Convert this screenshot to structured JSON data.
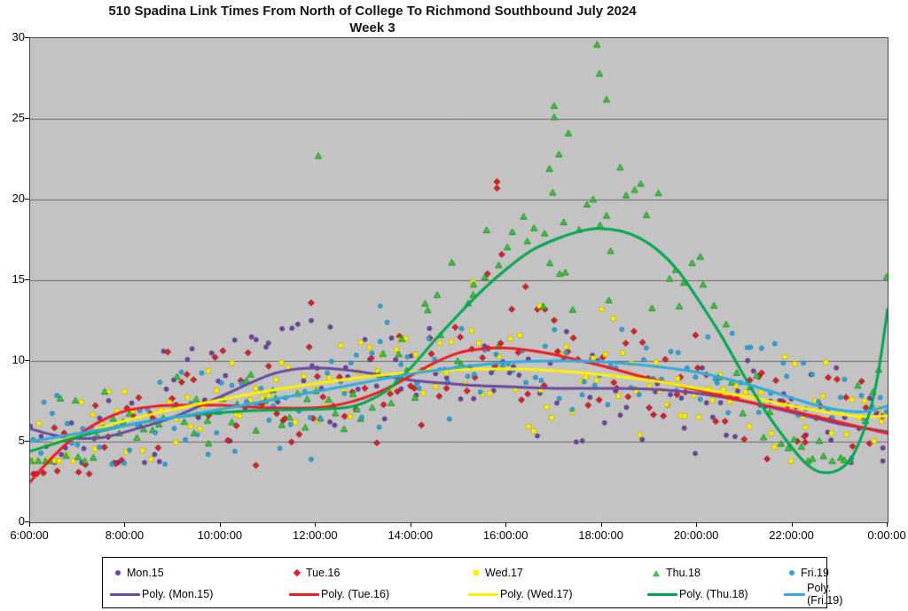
{
  "chart_data": {
    "type": "scatter",
    "title": "510 Spadina Link Times From North of College To Richmond Southbound July 2024",
    "subtitle": "Week 3",
    "xlabel": "",
    "ylabel": "",
    "grid": "horizontal",
    "legend_position": "bottom",
    "plot_bg_color": "#c3c3c3",
    "grid_color": "#6b6b6b",
    "x_axis": {
      "min": 6,
      "max": 24,
      "tick_hours": [
        6,
        8,
        10,
        12,
        14,
        16,
        18,
        20,
        22,
        24
      ],
      "labels": [
        "6:00:00",
        "8:00:00",
        "10:00:00",
        "12:00:00",
        "14:00:00",
        "16:00:00",
        "18:00:00",
        "20:00:00",
        "22:00:00",
        "0:00:00"
      ]
    },
    "y_axis": {
      "min": 0,
      "max": 30,
      "tick_values": [
        30,
        25,
        20,
        15,
        10,
        5,
        0
      ],
      "labels": [
        "30",
        "25",
        "20",
        "15",
        "10",
        "5",
        "0"
      ]
    },
    "series": [
      {
        "name": "Mon.15",
        "poly_label": "Poly. (Mon.15)",
        "marker": "circle",
        "marker_color": "#6f42a3",
        "marker_stroke": "#53307e",
        "line_color": "#6a4a9e",
        "poly_curve": [
          [
            6,
            5.8
          ],
          [
            6.5,
            5.4
          ],
          [
            7,
            5.2
          ],
          [
            7.5,
            5.25
          ],
          [
            8,
            5.6
          ],
          [
            9,
            6.5
          ],
          [
            10,
            7.8
          ],
          [
            11,
            9.1
          ],
          [
            11.6,
            9.5
          ],
          [
            12.2,
            9.55
          ],
          [
            13,
            9.3
          ],
          [
            14,
            8.8
          ],
          [
            15,
            8.55
          ],
          [
            16,
            8.4
          ],
          [
            17,
            8.3
          ],
          [
            18,
            8.3
          ],
          [
            19,
            8.25
          ],
          [
            20,
            8.0
          ],
          [
            21,
            7.5
          ],
          [
            22,
            6.8
          ],
          [
            23,
            6.1
          ],
          [
            23.5,
            5.85
          ],
          [
            24,
            5.6
          ]
        ],
        "outliers": [
          [
            8.8,
            10.6
          ],
          [
            11.9,
            12.5
          ],
          [
            12.3,
            12.1
          ],
          [
            23.9,
            3.8
          ]
        ],
        "scatter": {
          "count": 130,
          "seed": 7,
          "spread": 2.5,
          "min": 3.7,
          "max": 12.6
        }
      },
      {
        "name": "Tue.16",
        "poly_label": "Poly. (Tue.16)",
        "marker": "diamond",
        "marker_color": "#e01f25",
        "marker_stroke": "#8f1014",
        "line_color": "#ed1c24",
        "poly_curve": [
          [
            6,
            2.5
          ],
          [
            6.3,
            3.5
          ],
          [
            6.7,
            4.7
          ],
          [
            7,
            5.4
          ],
          [
            7.5,
            6.3
          ],
          [
            8,
            6.9
          ],
          [
            8.5,
            7.15
          ],
          [
            9,
            7.25
          ],
          [
            10,
            7.25
          ],
          [
            11,
            7.1
          ],
          [
            12,
            7.1
          ],
          [
            12.5,
            7.3
          ],
          [
            13,
            7.7
          ],
          [
            13.5,
            8.3
          ],
          [
            14,
            9.1
          ],
          [
            14.5,
            9.9
          ],
          [
            15,
            10.5
          ],
          [
            15.5,
            10.75
          ],
          [
            16,
            10.8
          ],
          [
            16.5,
            10.65
          ],
          [
            17,
            10.4
          ],
          [
            17.5,
            10.05
          ],
          [
            18,
            9.7
          ],
          [
            18.5,
            9.3
          ],
          [
            19,
            8.9
          ],
          [
            19.5,
            8.55
          ],
          [
            20,
            8.2
          ],
          [
            21,
            7.5
          ],
          [
            22,
            6.9
          ],
          [
            23,
            6.2
          ],
          [
            23.5,
            5.85
          ],
          [
            24,
            5.5
          ]
        ],
        "outliers": [
          [
            11.9,
            13.6
          ],
          [
            15.6,
            15.4
          ],
          [
            15.8,
            21.1
          ],
          [
            15.8,
            20.7
          ],
          [
            15.9,
            16.6
          ],
          [
            16.4,
            14.6
          ]
        ],
        "scatter": {
          "count": 135,
          "seed": 13,
          "spread": 2.6,
          "min": 3.0,
          "max": 13.2
        }
      },
      {
        "name": "Wed.17",
        "poly_label": "Poly. (Wed.17)",
        "marker": "square",
        "marker_color": "#fff100",
        "marker_stroke": "#c9b900",
        "line_color": "#fff100",
        "poly_curve": [
          [
            6,
            4.4
          ],
          [
            7,
            5.4
          ],
          [
            8,
            6.3
          ],
          [
            9,
            7.0
          ],
          [
            10,
            7.6
          ],
          [
            11,
            8.15
          ],
          [
            12,
            8.6
          ],
          [
            13,
            9.0
          ],
          [
            14,
            9.3
          ],
          [
            15,
            9.45
          ],
          [
            16,
            9.5
          ],
          [
            17,
            9.4
          ],
          [
            18,
            9.15
          ],
          [
            19,
            8.8
          ],
          [
            20,
            8.3
          ],
          [
            21,
            7.8
          ],
          [
            22,
            7.2
          ],
          [
            23,
            6.7
          ],
          [
            23.5,
            6.55
          ],
          [
            24,
            6.6
          ]
        ],
        "outliers": [
          [
            15.3,
            14.9
          ],
          [
            16.7,
            13.4
          ],
          [
            18.0,
            13.2
          ]
        ],
        "scatter": {
          "count": 135,
          "seed": 21,
          "spread": 2.6,
          "min": 3.8,
          "max": 13.8
        }
      },
      {
        "name": "Thu.18",
        "poly_label": "Poly. (Thu.18)",
        "marker": "triangle",
        "marker_color": "#3cc43c",
        "marker_stroke": "#1e8c1e",
        "line_color": "#00a550",
        "poly_curve": [
          [
            6,
            4.4
          ],
          [
            7,
            5.3
          ],
          [
            8,
            6.0
          ],
          [
            9,
            6.5
          ],
          [
            10,
            6.8
          ],
          [
            11,
            6.95
          ],
          [
            12,
            7.0
          ],
          [
            12.6,
            7.1
          ],
          [
            13,
            7.4
          ],
          [
            13.5,
            8.2
          ],
          [
            14,
            9.6
          ],
          [
            14.5,
            11.3
          ],
          [
            15,
            12.9
          ],
          [
            15.5,
            14.4
          ],
          [
            16,
            15.7
          ],
          [
            16.5,
            16.8
          ],
          [
            17,
            17.5
          ],
          [
            17.5,
            18.0
          ],
          [
            17.9,
            18.2
          ],
          [
            18.4,
            18.05
          ],
          [
            18.8,
            17.6
          ],
          [
            19.2,
            16.8
          ],
          [
            19.6,
            15.6
          ],
          [
            20,
            13.9
          ],
          [
            20.5,
            11.6
          ],
          [
            21,
            9.0
          ],
          [
            21.5,
            6.6
          ],
          [
            22,
            4.6
          ],
          [
            22.3,
            3.6
          ],
          [
            22.6,
            3.1
          ],
          [
            23,
            3.3
          ],
          [
            23.3,
            4.3
          ],
          [
            23.6,
            6.6
          ],
          [
            23.8,
            9.2
          ],
          [
            24,
            13.2
          ]
        ],
        "outliers": [
          [
            12.05,
            22.7
          ],
          [
            15.3,
            14.1
          ],
          [
            16.8,
            17.9
          ],
          [
            16.9,
            21.9
          ],
          [
            17.0,
            25.1
          ],
          [
            17.0,
            25.8
          ],
          [
            17.1,
            22.8
          ],
          [
            17.2,
            18.6
          ],
          [
            17.3,
            24.1
          ],
          [
            17.9,
            29.6
          ],
          [
            17.95,
            27.8
          ],
          [
            18.1,
            26.2
          ],
          [
            18.1,
            19.0
          ]
        ],
        "scatter": {
          "count": 130,
          "seed": 29,
          "spread": 2.4,
          "min": 3.8,
          "max": 22.5,
          "burst": {
            "from": 14.3,
            "to": 20.6,
            "mult": 1.7
          }
        }
      },
      {
        "name": "Fri.19",
        "poly_label": "Poly. (Fri.19)",
        "marker": "circle",
        "marker_color": "#2fa4dc",
        "marker_stroke": "#1d7fb0",
        "line_color": "#31aadf",
        "poly_curve": [
          [
            6,
            5.0
          ],
          [
            7,
            5.5
          ],
          [
            8,
            6.0
          ],
          [
            9,
            6.5
          ],
          [
            10,
            7.0
          ],
          [
            11,
            7.55
          ],
          [
            12,
            8.1
          ],
          [
            13,
            8.65
          ],
          [
            14,
            9.2
          ],
          [
            15,
            9.6
          ],
          [
            16,
            9.9
          ],
          [
            17,
            10.0
          ],
          [
            18,
            9.95
          ],
          [
            19,
            9.7
          ],
          [
            20,
            9.3
          ],
          [
            21,
            8.6
          ],
          [
            22,
            7.7
          ],
          [
            22.5,
            7.25
          ],
          [
            23,
            6.95
          ],
          [
            23.5,
            6.85
          ],
          [
            24,
            7.2
          ]
        ],
        "outliers": [
          [
            11.9,
            3.9
          ],
          [
            13.35,
            13.4
          ]
        ],
        "scatter": {
          "count": 135,
          "seed": 37,
          "spread": 2.4,
          "min": 3.6,
          "max": 13.4
        }
      }
    ]
  }
}
